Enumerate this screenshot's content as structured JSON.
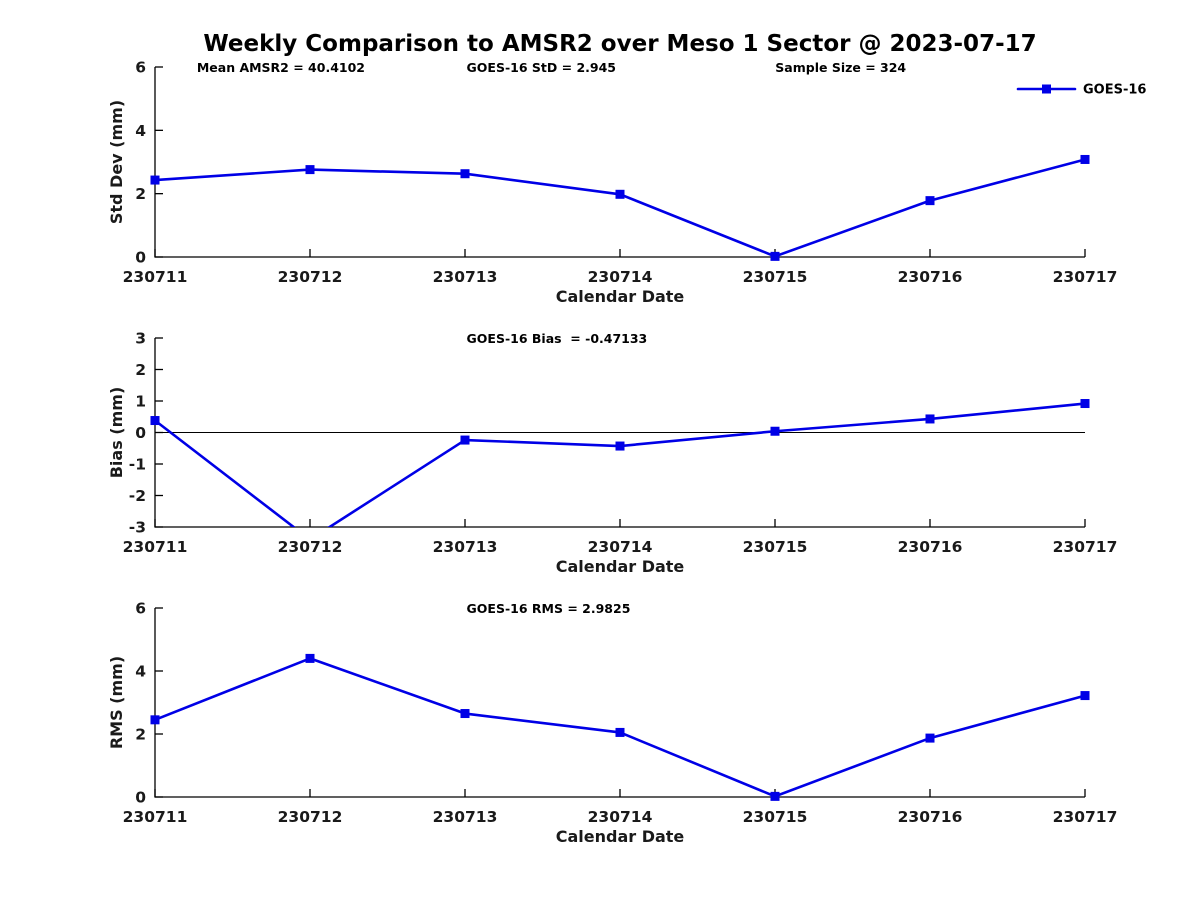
{
  "title": "Weekly Comparison to AMSR2 over Meso 1 Sector @ 2023-07-17",
  "style": {
    "accent_color": "#0000e6",
    "axis_color": "#000000",
    "text_color": "#1a1a1a",
    "background": "#ffffff"
  },
  "chart_data": [
    {
      "type": "line",
      "name": "std-dev-chart",
      "categories": [
        "230711",
        "230712",
        "230713",
        "230714",
        "230715",
        "230716",
        "230717"
      ],
      "series": [
        {
          "name": "GOES-16",
          "values": [
            2.43,
            2.76,
            2.63,
            1.98,
            0.02,
            1.78,
            3.08
          ]
        }
      ],
      "ylabel": "Std Dev (mm)",
      "xlabel": "Calendar Date",
      "ylim": [
        0,
        6
      ],
      "yticks": [
        0,
        2,
        4,
        6
      ],
      "grid": false,
      "annotations": [
        {
          "text": "Mean AMSR2 = 40.4102",
          "xf": 0.045
        },
        {
          "text": "GOES-16 StD = 2.945",
          "xf": 0.335
        },
        {
          "text": "Sample Size = 324",
          "xf": 0.667
        }
      ],
      "legend": {
        "label": "GOES-16",
        "position": "top-right"
      }
    },
    {
      "type": "line",
      "name": "bias-chart",
      "categories": [
        "230711",
        "230712",
        "230713",
        "230714",
        "230715",
        "230716",
        "230717"
      ],
      "series": [
        {
          "name": "GOES-16",
          "values": [
            0.38,
            -3.4,
            -0.24,
            -0.43,
            0.04,
            0.43,
            0.92
          ]
        }
      ],
      "ylabel": "Bias (mm)",
      "xlabel": "Calendar Date",
      "ylim": [
        -3,
        3
      ],
      "yticks": [
        -3,
        -2,
        -1,
        0,
        1,
        2,
        3
      ],
      "grid": false,
      "zero_line": true,
      "clip_series": true,
      "annotations": [
        {
          "text": "GOES-16 Bias  = -0.47133",
          "xf": 0.335
        }
      ]
    },
    {
      "type": "line",
      "name": "rms-chart",
      "categories": [
        "230711",
        "230712",
        "230713",
        "230714",
        "230715",
        "230716",
        "230717"
      ],
      "series": [
        {
          "name": "GOES-16",
          "values": [
            2.45,
            4.4,
            2.65,
            2.05,
            0.02,
            1.87,
            3.22
          ]
        }
      ],
      "ylabel": "RMS (mm)",
      "xlabel": "Calendar Date",
      "ylim": [
        0,
        6
      ],
      "yticks": [
        0,
        2,
        4,
        6
      ],
      "grid": false,
      "annotations": [
        {
          "text": "GOES-16 RMS = 2.9825",
          "xf": 0.335
        }
      ]
    }
  ]
}
